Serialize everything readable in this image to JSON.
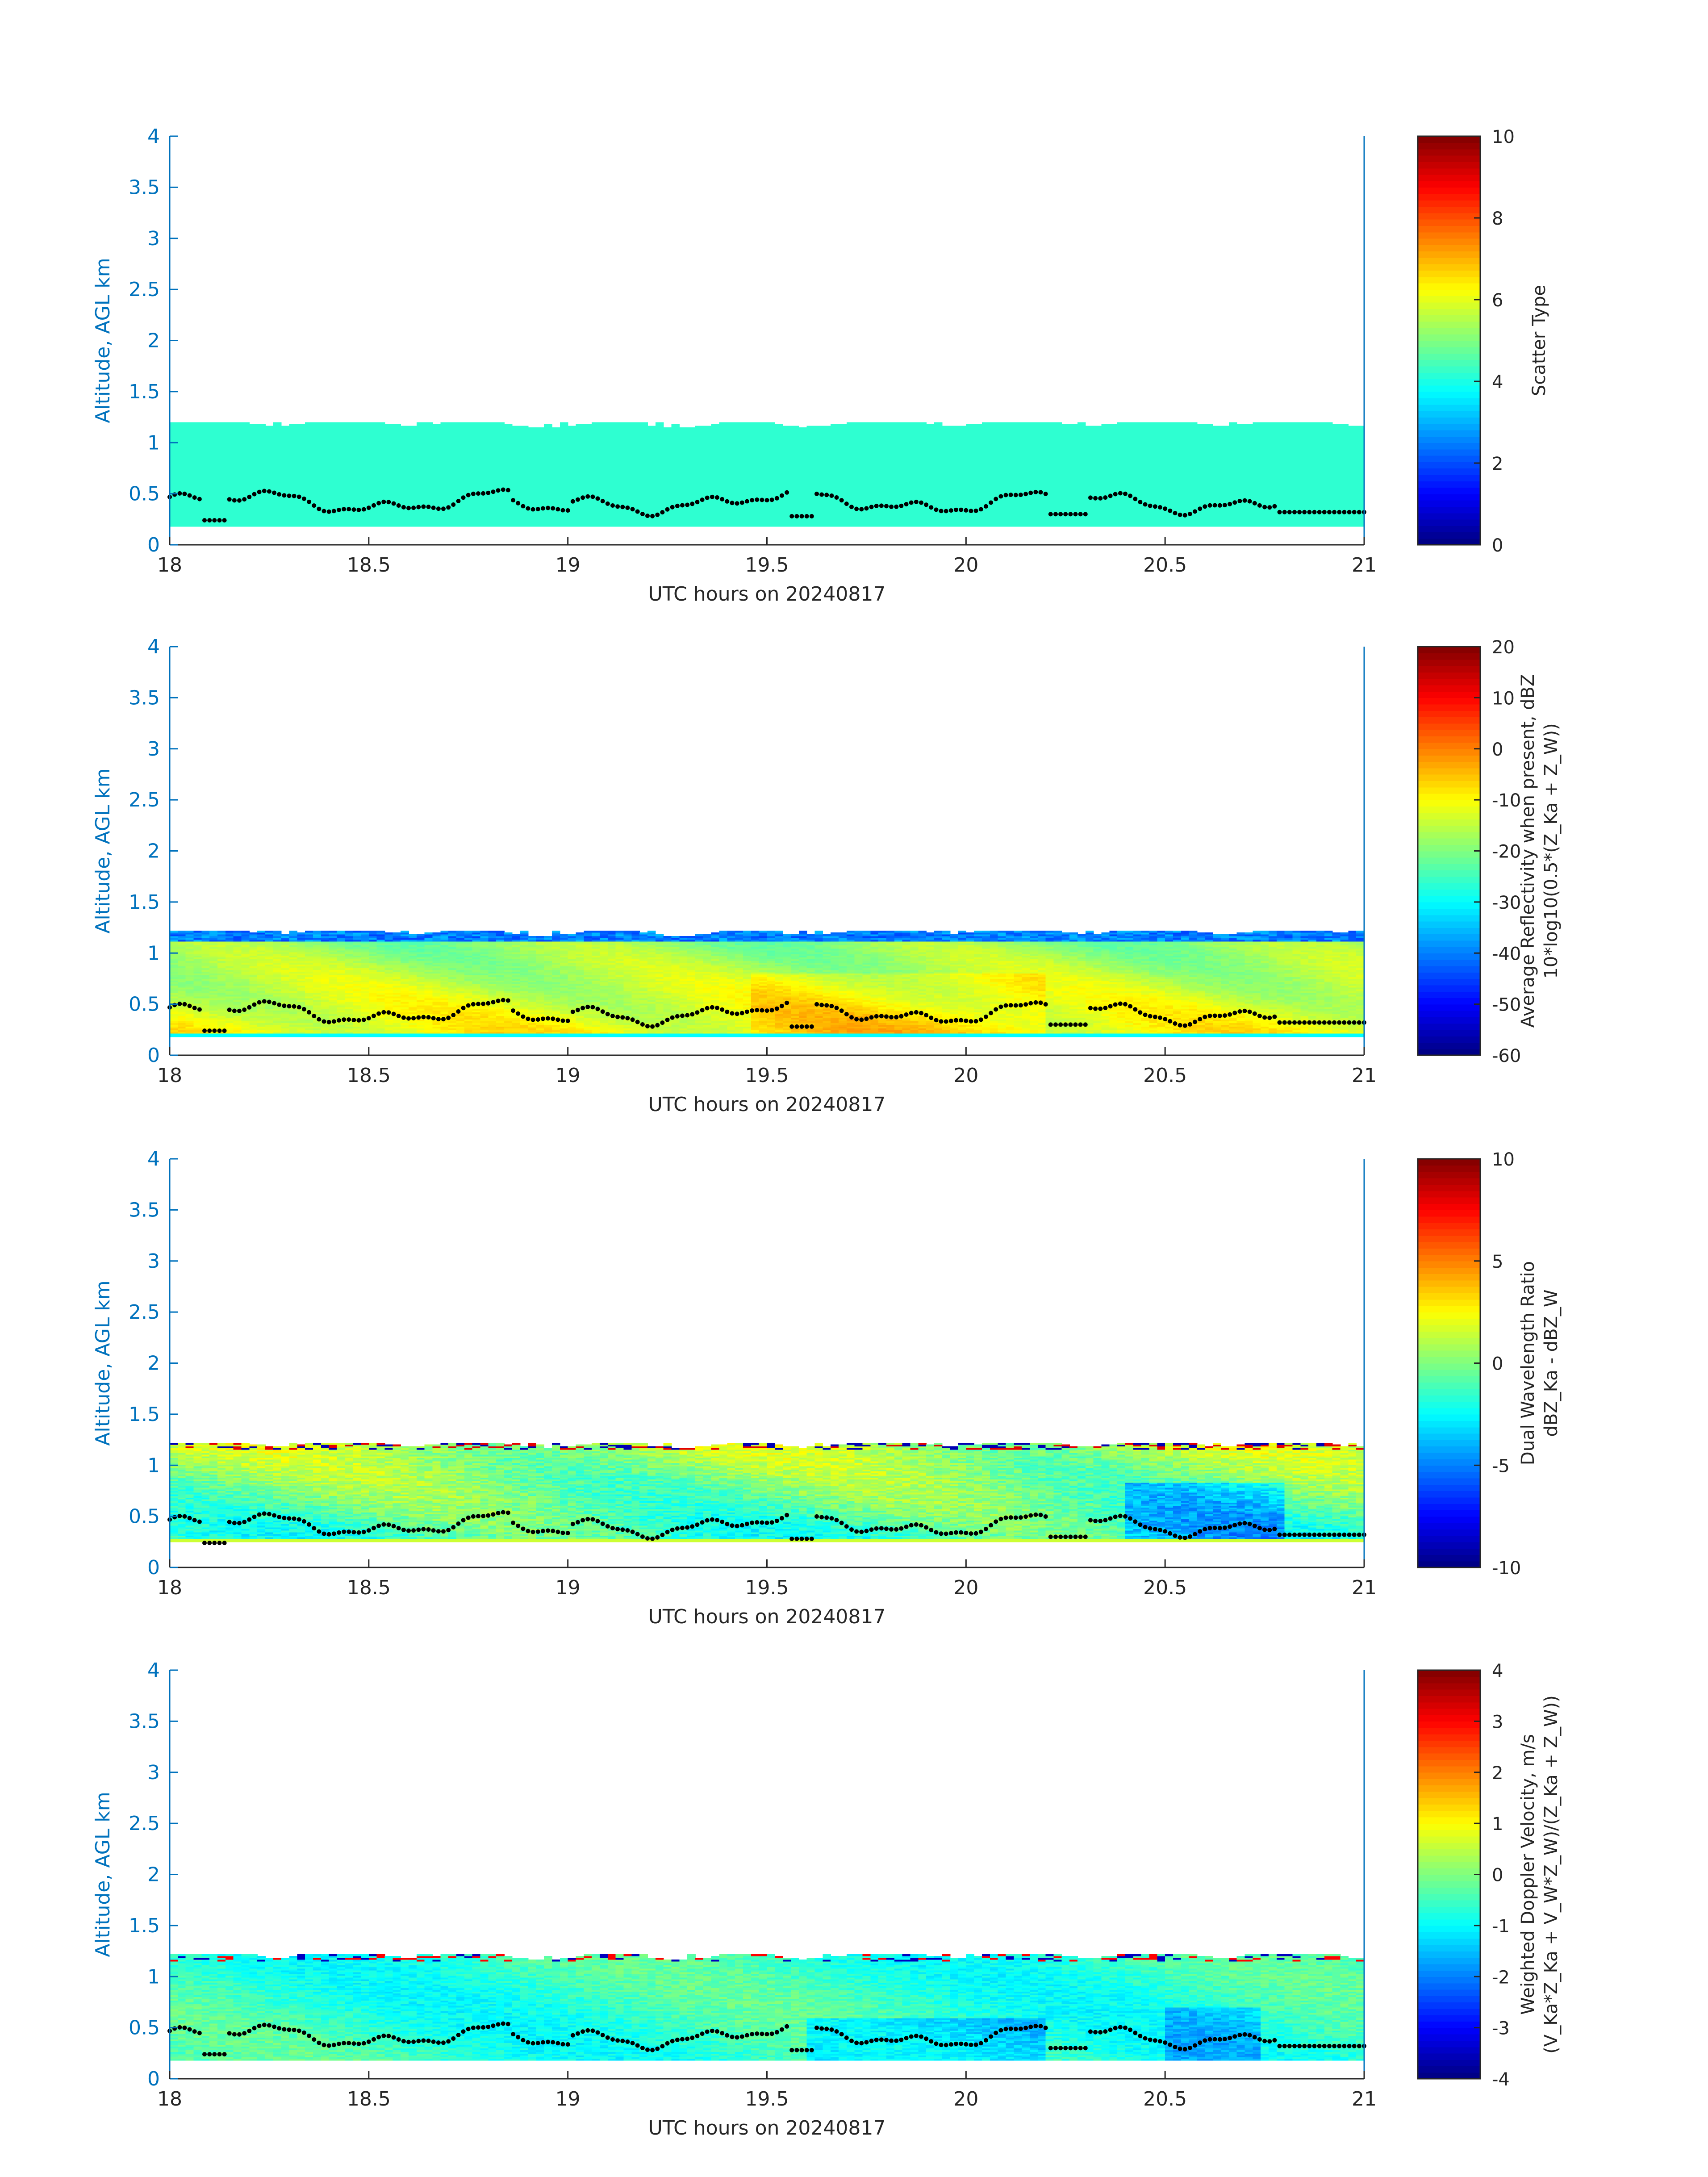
{
  "figure": {
    "shared_x": {
      "label": "UTC hours on 20240817",
      "ticks": [
        "18",
        "18.5",
        "19",
        "19.5",
        "20",
        "20.5",
        "21"
      ],
      "range": [
        18,
        21
      ]
    },
    "shared_y": {
      "label": "Altitude, AGL km",
      "ticks": [
        "0",
        "0.5",
        "1",
        "1.5",
        "2",
        "2.5",
        "3",
        "3.5",
        "4"
      ],
      "range": [
        0,
        4
      ]
    },
    "colors": {
      "axis_blue": "#0072bd",
      "text_dark": "#262626",
      "cloud_base_dots": "#000000"
    }
  },
  "chart_data": [
    {
      "type": "heatmap",
      "panel": "scatter-type",
      "xlabel": "UTC hours on 20240817",
      "ylabel": "Altitude, AGL km",
      "xlim": [
        18,
        21
      ],
      "ylim": [
        0,
        4
      ],
      "colorbar": {
        "label_lines": [
          "Scatter Type"
        ],
        "range": [
          0,
          10
        ],
        "ticks": [
          "0",
          "2",
          "4",
          "6",
          "8",
          "10"
        ],
        "colormap": "jet"
      },
      "field": {
        "kind": "uniform",
        "value": 4.2
      },
      "layer": {
        "bottom_km": 0.18,
        "top_km": 1.2
      },
      "cloud_base_dots": true
    },
    {
      "type": "heatmap",
      "panel": "reflectivity",
      "xlabel": "UTC hours on 20240817",
      "ylabel": "Altitude, AGL km",
      "xlim": [
        18,
        21
      ],
      "ylim": [
        0,
        4
      ],
      "colorbar": {
        "label_lines": [
          "Average Reflectivity when present, dBZ",
          "10*log10(0.5*(Z_Ka + Z_W))"
        ],
        "range": [
          -60,
          20
        ],
        "ticks": [
          "-60",
          "-50",
          "-40",
          "-30",
          "-20",
          "-10",
          "0",
          "10",
          "20"
        ],
        "colormap": "jet"
      },
      "field": {
        "kind": "reflectivity",
        "typical_range": [
          -28,
          -5
        ]
      },
      "layer": {
        "bottom_km": 0.18,
        "top_km": 1.22
      },
      "cloud_base_dots": true
    },
    {
      "type": "heatmap",
      "panel": "dual-wavelength-ratio",
      "xlabel": "UTC hours on 20240817",
      "ylabel": "Altitude, AGL km",
      "xlim": [
        18,
        21
      ],
      "ylim": [
        0,
        4
      ],
      "colorbar": {
        "label_lines": [
          "Dual Wavelength Ratio",
          "dBZ_Ka - dBZ_W"
        ],
        "range": [
          -10,
          10
        ],
        "ticks": [
          "-10",
          "-5",
          "0",
          "5",
          "10"
        ],
        "colormap": "jet"
      },
      "field": {
        "kind": "dwr",
        "typical_range": [
          -5,
          3
        ]
      },
      "layer": {
        "bottom_km": 0.25,
        "top_km": 1.22
      },
      "cloud_base_dots": true
    },
    {
      "type": "heatmap",
      "panel": "doppler-velocity",
      "xlabel": "UTC hours on 20240817",
      "ylabel": "Altitude, AGL km",
      "xlim": [
        18,
        21
      ],
      "ylim": [
        0,
        4
      ],
      "colorbar": {
        "label_lines": [
          "Weighted Doppler Velocity, m/s",
          "(V_Ka*Z_Ka + V_W*Z_W)/(Z_Ka + Z_W))"
        ],
        "range": [
          -4,
          4
        ],
        "ticks": [
          "-4",
          "-3",
          "-2",
          "-1",
          "0",
          "1",
          "2",
          "3",
          "4"
        ],
        "colormap": "jet"
      },
      "field": {
        "kind": "velocity",
        "typical_range": [
          -2,
          0.5
        ]
      },
      "layer": {
        "bottom_km": 0.18,
        "top_km": 1.22
      },
      "cloud_base_dots": true
    }
  ]
}
